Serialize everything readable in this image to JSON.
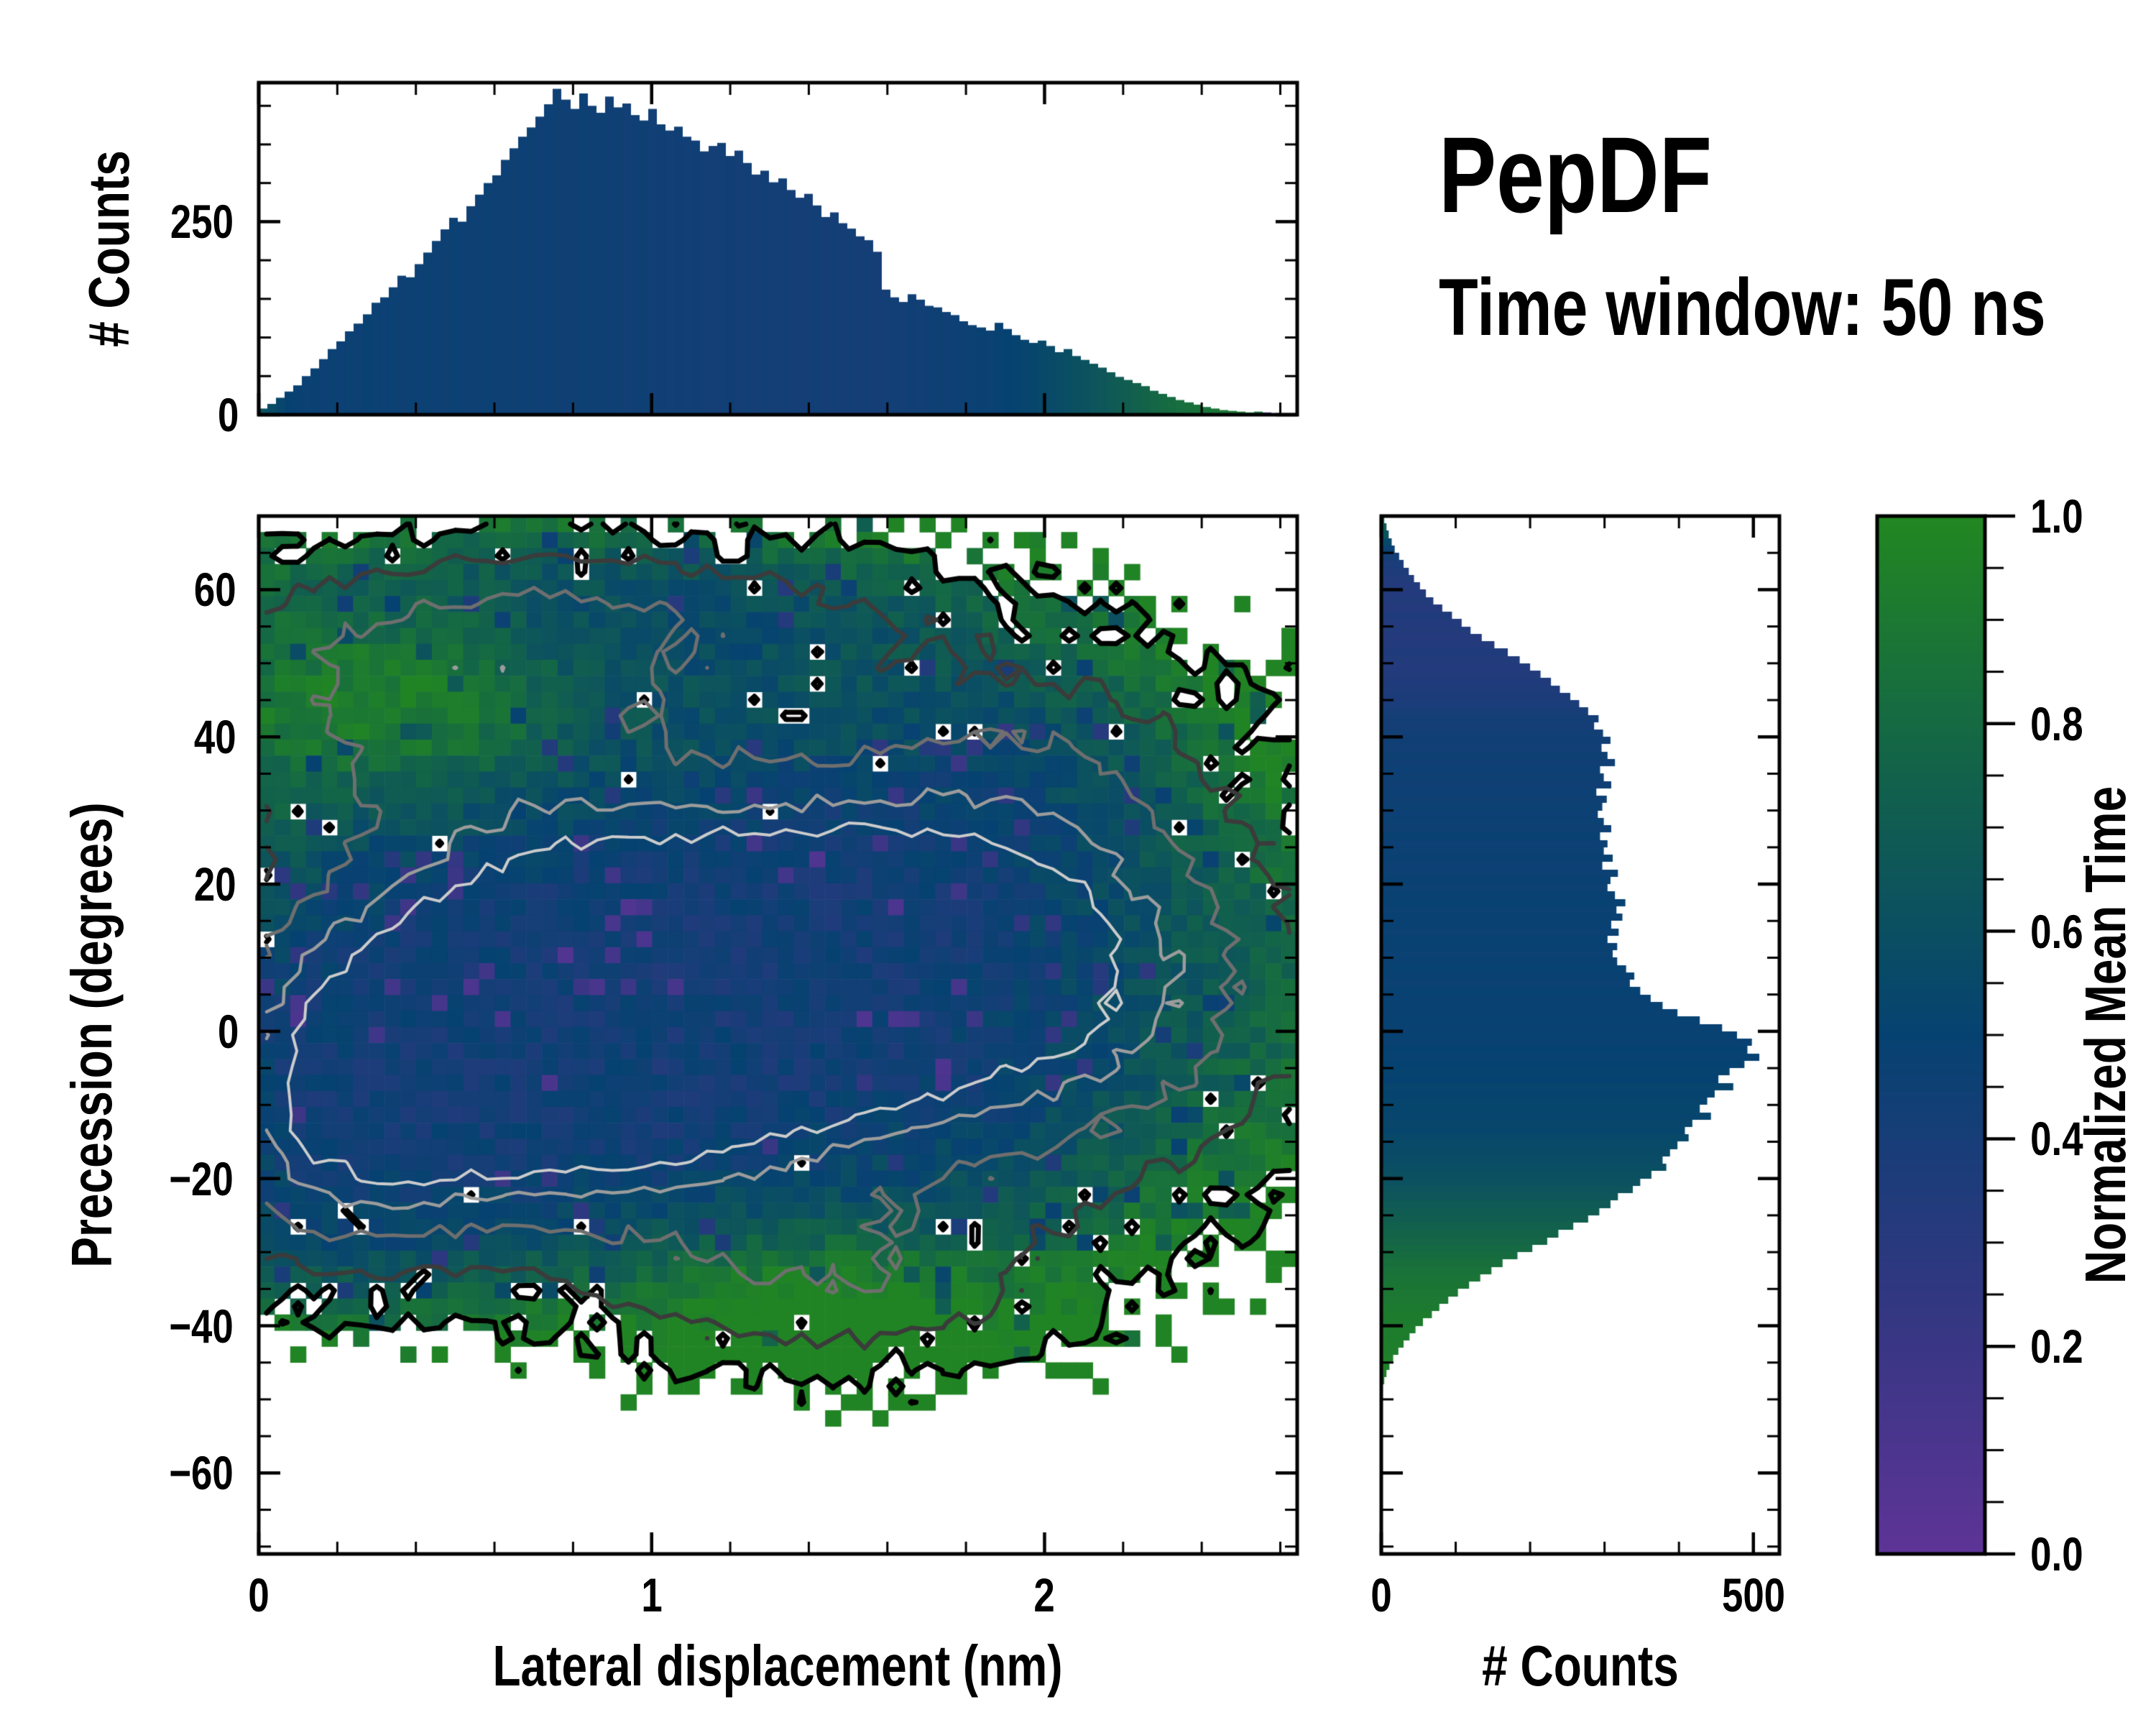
{
  "title": {
    "text": "PepDF",
    "subtitle": "Time window: 50 ns"
  },
  "colors": {
    "background": "#ffffff",
    "spine": "#000000",
    "colormap_stops": [
      [
        0.0,
        "#5e3497"
      ],
      [
        0.25,
        "#313781"
      ],
      [
        0.5,
        "#064271"
      ],
      [
        0.75,
        "#12624b"
      ],
      [
        1.0,
        "#228721"
      ]
    ]
  },
  "chart_data": [
    {
      "type": "bar",
      "id": "top-marginal-histogram",
      "ylabel": "# Counts",
      "xlim": [
        0,
        2.643
      ],
      "ylim": [
        0,
        430
      ],
      "yticks": [
        {
          "v": 0,
          "label": "0"
        },
        {
          "v": 250,
          "label": "250"
        }
      ],
      "ytick_minor_step": 50,
      "n_bins": 120,
      "values": [
        8,
        14,
        22,
        30,
        38,
        50,
        60,
        72,
        85,
        95,
        108,
        118,
        130,
        145,
        152,
        165,
        180,
        178,
        195,
        210,
        225,
        240,
        255,
        250,
        270,
        285,
        300,
        310,
        330,
        345,
        360,
        372,
        386,
        402,
        422,
        408,
        396,
        416,
        400,
        391,
        412,
        398,
        403,
        388,
        381,
        396,
        376,
        368,
        373,
        360,
        355,
        341,
        348,
        352,
        335,
        342,
        326,
        311,
        316,
        301,
        306,
        291,
        281,
        286,
        271,
        256,
        262,
        248,
        241,
        231,
        226,
        211,
        162,
        152,
        146,
        156,
        149,
        141,
        139,
        133,
        129,
        121,
        116,
        113,
        109,
        119,
        111,
        103,
        97,
        93,
        96,
        89,
        81,
        85,
        76,
        71,
        66,
        61,
        55,
        49,
        45,
        41,
        37,
        31,
        27,
        23,
        19,
        16,
        13,
        10,
        8,
        6,
        5,
        4,
        3,
        4,
        3,
        0,
        0,
        0
      ],
      "mean_time": [
        0.62,
        0.58,
        0.54,
        0.5,
        0.48,
        0.47,
        0.48,
        0.46,
        0.47,
        0.46,
        0.47,
        0.46,
        0.48,
        0.47,
        0.46,
        0.47,
        0.45,
        0.47,
        0.46,
        0.47,
        0.46,
        0.45,
        0.47,
        0.46,
        0.45,
        0.46,
        0.47,
        0.45,
        0.46,
        0.45,
        0.46,
        0.45,
        0.44,
        0.46,
        0.45,
        0.44,
        0.45,
        0.46,
        0.44,
        0.45,
        0.44,
        0.45,
        0.43,
        0.44,
        0.45,
        0.43,
        0.44,
        0.43,
        0.44,
        0.43,
        0.44,
        0.43,
        0.42,
        0.43,
        0.44,
        0.42,
        0.43,
        0.42,
        0.43,
        0.42,
        0.43,
        0.42,
        0.41,
        0.42,
        0.43,
        0.41,
        0.42,
        0.41,
        0.42,
        0.41,
        0.42,
        0.41,
        0.42,
        0.43,
        0.42,
        0.44,
        0.43,
        0.44,
        0.45,
        0.44,
        0.46,
        0.45,
        0.47,
        0.48,
        0.47,
        0.49,
        0.5,
        0.51,
        0.52,
        0.53,
        0.55,
        0.56,
        0.58,
        0.59,
        0.61,
        0.62,
        0.64,
        0.66,
        0.68,
        0.7,
        0.72,
        0.74,
        0.76,
        0.78,
        0.8,
        0.81,
        0.83,
        0.84,
        0.85,
        0.86,
        0.87,
        0.88,
        0.88,
        0.89,
        0.9,
        0.85,
        0.1,
        0.5,
        0.5,
        0.5
      ]
    },
    {
      "type": "heatmap",
      "id": "joint-2d-histogram",
      "xlabel": "Lateral displacement (nm)",
      "ylabel": "Precession (degrees)",
      "color_field": "Normalized Mean Time",
      "xlim": [
        0,
        2.643
      ],
      "ylim": [
        -71,
        70
      ],
      "xticks": [
        {
          "v": 0,
          "label": "0"
        },
        {
          "v": 1,
          "label": "1"
        },
        {
          "v": 2,
          "label": "2"
        }
      ],
      "xtick_minor_step": 0.2,
      "yticks": [
        {
          "v": 60,
          "label": "60"
        },
        {
          "v": 40,
          "label": "40"
        },
        {
          "v": 20,
          "label": "20"
        },
        {
          "v": 0,
          "label": "0"
        },
        {
          "v": -20,
          "label": "−20"
        },
        {
          "v": -40,
          "label": "−40"
        },
        {
          "v": -60,
          "label": "−60"
        }
      ],
      "ytick_minor_step": 5,
      "grid": {
        "nx": 66,
        "ny": 65
      },
      "seed": 42,
      "density_blobs": [
        [
          0.62,
          -3,
          0.5,
          15,
          1.0
        ],
        [
          1.1,
          6,
          0.62,
          18,
          0.85
        ],
        [
          1.65,
          14,
          0.55,
          16,
          0.55
        ],
        [
          0.45,
          42,
          0.45,
          13,
          0.5
        ],
        [
          0.95,
          56,
          0.7,
          8,
          0.38
        ],
        [
          1.45,
          -34,
          0.42,
          9,
          0.42
        ],
        [
          2.15,
          2,
          0.45,
          20,
          0.4
        ],
        [
          2.0,
          38,
          0.35,
          10,
          0.25
        ],
        [
          0.18,
          -20,
          0.25,
          12,
          0.35
        ]
      ],
      "occupancy": {
        "threshold": 0.105,
        "noise": 0.22,
        "hole_base": 0.4,
        "hole_falloff": 5.5
      },
      "mean_time_model": {
        "base": 0.42,
        "density_term": 0.71,
        "density_falloff": 3.5,
        "noise": 0.16,
        "purple_prob": 0.055,
        "purple_delta": 0.28,
        "boosts": [
          [
            0.35,
            45,
            0.35,
            10,
            0.45
          ],
          [
            1.45,
            -38,
            0.4,
            8,
            0.5
          ],
          [
            2.45,
            0,
            0.3,
            60,
            0.18
          ]
        ]
      },
      "contours": {
        "jitter": 0.1,
        "levels": [
          {
            "level": 0.105,
            "color": "#000000",
            "width": 7,
            "masked": true
          },
          {
            "level": 0.32,
            "color": "#3b3b3b",
            "width": 6
          },
          {
            "level": 0.52,
            "color": "#6f6f6f",
            "width": 5
          },
          {
            "level": 0.72,
            "color": "#9c9c9c",
            "width": 4.5
          },
          {
            "level": 0.88,
            "color": "#cccccc",
            "width": 4
          }
        ]
      }
    },
    {
      "type": "bar",
      "id": "right-marginal-histogram",
      "orientation": "horizontal",
      "xlabel": "# Counts",
      "xlim": [
        0,
        535
      ],
      "ylim": [
        -71,
        70
      ],
      "xticks": [
        {
          "v": 0,
          "label": "0"
        },
        {
          "v": 500,
          "label": "500"
        }
      ],
      "xtick_minor_step": 100,
      "n_bins": 141,
      "values": [
        4,
        7,
        10,
        14,
        18,
        24,
        30,
        37,
        44,
        52,
        60,
        70,
        82,
        95,
        108,
        120,
        135,
        152,
        170,
        186,
        200,
        214,
        228,
        240,
        254,
        266,
        278,
        292,
        286,
        298,
        308,
        296,
        304,
        314,
        294,
        299,
        309,
        289,
        303,
        297,
        291,
        299,
        309,
        294,
        304,
        299,
        311,
        297,
        318,
        308,
        304,
        314,
        328,
        316,
        324,
        309,
        319,
        304,
        317,
        311,
        317,
        329,
        340,
        334,
        348,
        362,
        378,
        398,
        428,
        458,
        478,
        498,
        492,
        508,
        488,
        468,
        453,
        473,
        448,
        438,
        428,
        443,
        418,
        408,
        413,
        398,
        388,
        378,
        383,
        363,
        348,
        338,
        318,
        308,
        293,
        278,
        258,
        238,
        223,
        203,
        183,
        163,
        148,
        133,
        118,
        103,
        90,
        78,
        68,
        56,
        46,
        38,
        30,
        23,
        16,
        11,
        7,
        4,
        2,
        0,
        0,
        0,
        0,
        0,
        0,
        0,
        0,
        0,
        0,
        0,
        0,
        0,
        0,
        0,
        0,
        0,
        0,
        0,
        0,
        0,
        0
      ],
      "mean_time": [
        0.72,
        0.68,
        0.62,
        0.55,
        0.48,
        0.42,
        0.38,
        0.36,
        0.34,
        0.33,
        0.33,
        0.34,
        0.32,
        0.35,
        0.33,
        0.34,
        0.32,
        0.33,
        0.35,
        0.34,
        0.33,
        0.34,
        0.35,
        0.36,
        0.37,
        0.38,
        0.4,
        0.42,
        0.41,
        0.43,
        0.44,
        0.43,
        0.45,
        0.44,
        0.46,
        0.45,
        0.44,
        0.46,
        0.45,
        0.47,
        0.46,
        0.47,
        0.45,
        0.48,
        0.46,
        0.47,
        0.48,
        0.46,
        0.47,
        0.48,
        0.47,
        0.48,
        0.49,
        0.47,
        0.48,
        0.48,
        0.47,
        0.49,
        0.48,
        0.47,
        0.48,
        0.49,
        0.48,
        0.47,
        0.49,
        0.48,
        0.49,
        0.48,
        0.49,
        0.48,
        0.49,
        0.48,
        0.5,
        0.49,
        0.5,
        0.51,
        0.5,
        0.52,
        0.51,
        0.52,
        0.53,
        0.52,
        0.54,
        0.53,
        0.55,
        0.56,
        0.57,
        0.58,
        0.59,
        0.61,
        0.62,
        0.64,
        0.66,
        0.68,
        0.7,
        0.72,
        0.74,
        0.76,
        0.78,
        0.8,
        0.82,
        0.84,
        0.86,
        0.87,
        0.88,
        0.89,
        0.9,
        0.91,
        0.92,
        0.92,
        0.93,
        0.93,
        0.94,
        0.94,
        0.95,
        0.95,
        0.95,
        0.96,
        0.96,
        0.5,
        0.5,
        0.5,
        0.5,
        0.5,
        0.5,
        0.5,
        0.5,
        0.5,
        0.5,
        0.5,
        0.5,
        0.5,
        0.5,
        0.5,
        0.5,
        0.5,
        0.5,
        0.5,
        0.5,
        0.5,
        0.5
      ]
    },
    {
      "type": "colorbar",
      "id": "colorbar",
      "label": "Normalized Mean Time",
      "range": [
        0,
        1
      ],
      "ticks": [
        {
          "v": 1.0,
          "label": "1.0"
        },
        {
          "v": 0.8,
          "label": "0.8"
        },
        {
          "v": 0.6,
          "label": "0.6"
        },
        {
          "v": 0.4,
          "label": "0.4"
        },
        {
          "v": 0.2,
          "label": "0.2"
        },
        {
          "v": 0.0,
          "label": "0.0"
        }
      ],
      "minor_step": 0.05
    }
  ]
}
